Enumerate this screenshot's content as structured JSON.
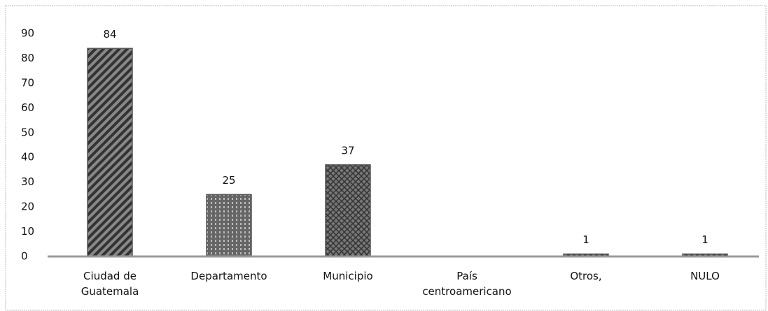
{
  "chart_data": {
    "type": "bar",
    "categories": [
      "Ciudad de Guatemala",
      "Departamento",
      "Municipio",
      "País centroamericano",
      "Otros,",
      "NULO"
    ],
    "values": [
      84,
      25,
      37,
      null,
      1,
      1
    ],
    "color": "#555555",
    "ylim": [
      0,
      90
    ],
    "yticks": [
      0,
      10,
      20,
      30,
      40,
      50,
      60,
      70,
      80,
      90
    ],
    "grid": false
  }
}
